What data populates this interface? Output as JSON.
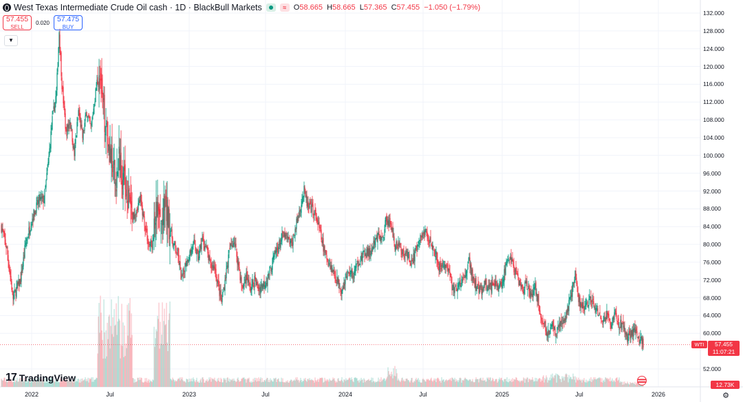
{
  "header": {
    "title": "West Texas Intermediate Crude Oil cash · 1D · BlackBull Markets",
    "ohlc": [
      {
        "k": "O",
        "v": "58.665"
      },
      {
        "k": "H",
        "v": "58.665"
      },
      {
        "k": "L",
        "v": "57.365"
      },
      {
        "k": "C",
        "v": "57.455"
      }
    ],
    "change": "−1.050 (−1.79%)",
    "red_btn_label": "≈"
  },
  "trade": {
    "sell_price": "57.455",
    "sell_label": "SELL",
    "spread": "0.020",
    "buy_price": "57.475",
    "buy_label": "BUY"
  },
  "brand": {
    "logo_mark": "17",
    "name": "TradingView"
  },
  "price_axis": {
    "ticks": [
      "132.000",
      "128.000",
      "124.000",
      "120.000",
      "116.000",
      "112.000",
      "108.000",
      "104.000",
      "100.000",
      "96.000",
      "92.000",
      "88.000",
      "84.000",
      "80.000",
      "76.000",
      "72.000",
      "68.000",
      "64.000",
      "60.000",
      "52.000"
    ],
    "symbol_tag": "WTI",
    "last_price": "57.455",
    "countdown": "11:07:21",
    "volume_tag": "12.73K"
  },
  "time_axis": {
    "labels": [
      "2022",
      "Jul",
      "2023",
      "Jul",
      "2024",
      "Jul",
      "2025",
      "Jul",
      "2026"
    ]
  },
  "colors": {
    "up": "#089981",
    "down": "#f23645",
    "grid": "#f0f3fa",
    "text": "#131722"
  },
  "chart_data": {
    "type": "candlestick",
    "series": [
      {
        "name": "West Texas Intermediate Crude Oil cash",
        "interval": "1D"
      }
    ],
    "anchors": [
      [
        0,
        84
      ],
      [
        8,
        79
      ],
      [
        12,
        74
      ],
      [
        17,
        68
      ],
      [
        22,
        70
      ],
      [
        28,
        72
      ],
      [
        35,
        80
      ],
      [
        45,
        86
      ],
      [
        55,
        90
      ],
      [
        62,
        90
      ],
      [
        68,
        98
      ],
      [
        74,
        108
      ],
      [
        80,
        114
      ],
      [
        84,
        128
      ],
      [
        88,
        116
      ],
      [
        94,
        105
      ],
      [
        100,
        108
      ],
      [
        106,
        100
      ],
      [
        112,
        110
      ],
      [
        118,
        104
      ],
      [
        124,
        110
      ],
      [
        130,
        106
      ],
      [
        136,
        113
      ],
      [
        142,
        120
      ],
      [
        148,
        110
      ],
      [
        154,
        106
      ],
      [
        160,
        98
      ],
      [
        166,
        94
      ],
      [
        172,
        100
      ],
      [
        178,
        94
      ],
      [
        184,
        91
      ],
      [
        190,
        86
      ],
      [
        196,
        88
      ],
      [
        202,
        90
      ],
      [
        208,
        85
      ],
      [
        214,
        80
      ],
      [
        220,
        80
      ],
      [
        226,
        88
      ],
      [
        232,
        84
      ],
      [
        238,
        88
      ],
      [
        244,
        85
      ],
      [
        250,
        80
      ],
      [
        256,
        78
      ],
      [
        262,
        72
      ],
      [
        268,
        76
      ],
      [
        274,
        78
      ],
      [
        280,
        80
      ],
      [
        286,
        77
      ],
      [
        292,
        81
      ],
      [
        298,
        79
      ],
      [
        304,
        75
      ],
      [
        310,
        75
      ],
      [
        316,
        70
      ],
      [
        320,
        67
      ],
      [
        326,
        73
      ],
      [
        332,
        79
      ],
      [
        338,
        81
      ],
      [
        344,
        76
      ],
      [
        350,
        70
      ],
      [
        356,
        73
      ],
      [
        362,
        70
      ],
      [
        368,
        72
      ],
      [
        374,
        70
      ],
      [
        380,
        71
      ],
      [
        386,
        72
      ],
      [
        392,
        75
      ],
      [
        398,
        78
      ],
      [
        404,
        80
      ],
      [
        410,
        82
      ],
      [
        416,
        81
      ],
      [
        422,
        80
      ],
      [
        428,
        84
      ],
      [
        434,
        88
      ],
      [
        440,
        92
      ],
      [
        446,
        88
      ],
      [
        452,
        88
      ],
      [
        458,
        86
      ],
      [
        464,
        82
      ],
      [
        470,
        78
      ],
      [
        476,
        76
      ],
      [
        482,
        74
      ],
      [
        488,
        72
      ],
      [
        494,
        70
      ],
      [
        500,
        72
      ],
      [
        506,
        74
      ],
      [
        512,
        73
      ],
      [
        518,
        76
      ],
      [
        524,
        77
      ],
      [
        530,
        78
      ],
      [
        536,
        78
      ],
      [
        542,
        80
      ],
      [
        548,
        82
      ],
      [
        554,
        81
      ],
      [
        560,
        86
      ],
      [
        566,
        84
      ],
      [
        572,
        80
      ],
      [
        578,
        80
      ],
      [
        584,
        78
      ],
      [
        590,
        78
      ],
      [
        596,
        76
      ],
      [
        602,
        78
      ],
      [
        608,
        81
      ],
      [
        614,
        83
      ],
      [
        620,
        82
      ],
      [
        626,
        80
      ],
      [
        632,
        78
      ],
      [
        638,
        74
      ],
      [
        644,
        76
      ],
      [
        650,
        74
      ],
      [
        656,
        70
      ],
      [
        662,
        70
      ],
      [
        668,
        71
      ],
      [
        674,
        73
      ],
      [
        680,
        76
      ],
      [
        686,
        72
      ],
      [
        692,
        70
      ],
      [
        698,
        70
      ],
      [
        704,
        71
      ],
      [
        710,
        70
      ],
      [
        716,
        72
      ],
      [
        722,
        70
      ],
      [
        728,
        72
      ],
      [
        734,
        75
      ],
      [
        740,
        77
      ],
      [
        746,
        74
      ],
      [
        752,
        72
      ],
      [
        758,
        70
      ],
      [
        764,
        71
      ],
      [
        770,
        68
      ],
      [
        776,
        70
      ],
      [
        782,
        66
      ],
      [
        788,
        62
      ],
      [
        794,
        60
      ],
      [
        800,
        62
      ],
      [
        806,
        60
      ],
      [
        812,
        62
      ],
      [
        818,
        62
      ],
      [
        824,
        66
      ],
      [
        830,
        70
      ],
      [
        834,
        74
      ],
      [
        838,
        68
      ],
      [
        844,
        66
      ],
      [
        850,
        66
      ],
      [
        856,
        68
      ],
      [
        862,
        66
      ],
      [
        868,
        64
      ],
      [
        874,
        62
      ],
      [
        880,
        64
      ],
      [
        886,
        62
      ],
      [
        892,
        64
      ],
      [
        898,
        62
      ],
      [
        904,
        62
      ],
      [
        910,
        59
      ],
      [
        916,
        60
      ],
      [
        922,
        61
      ],
      [
        928,
        59
      ],
      [
        933,
        57.455
      ]
    ],
    "ylim": [
      52,
      132
    ]
  }
}
